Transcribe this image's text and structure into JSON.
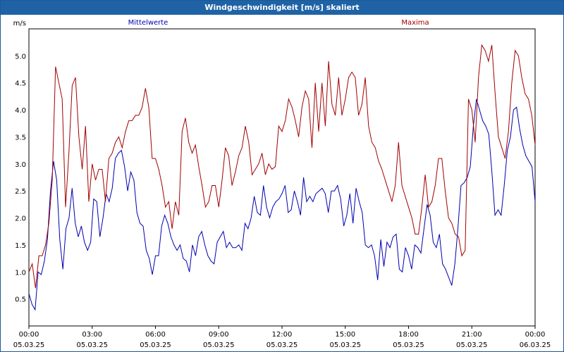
{
  "window": {
    "title": "Windgeschwindigkeit [m/s] skaliert"
  },
  "chart_data": {
    "type": "line",
    "title": "Windgeschwindigkeit [m/s] skaliert",
    "ylabel": "m/s",
    "xlabel": "",
    "xlim": [
      0,
      24
    ],
    "ylim": [
      0,
      5.5
    ],
    "grid": true,
    "y_ticks": [
      "0.5",
      "1.0",
      "1.5",
      "2.0",
      "2.5",
      "3.0",
      "3.5",
      "4.0",
      "4.5",
      "5.0"
    ],
    "x_ticks": [
      {
        "time": "00:00",
        "date": "05.03.25"
      },
      {
        "time": "03:00",
        "date": "05.03.25"
      },
      {
        "time": "06:00",
        "date": "05.03.25"
      },
      {
        "time": "09:00",
        "date": "05.03.25"
      },
      {
        "time": "12:00",
        "date": "05.03.25"
      },
      {
        "time": "15:00",
        "date": "05.03.25"
      },
      {
        "time": "18:00",
        "date": "05.03.25"
      },
      {
        "time": "21:00",
        "date": "05.03.25"
      },
      {
        "time": "00:00",
        "date": "06.03.25"
      }
    ],
    "series": [
      {
        "name": "Mittelwerte",
        "color": "#0000b0",
        "values": [
          0.6,
          0.4,
          0.3,
          1.0,
          0.95,
          1.2,
          1.6,
          2.5,
          3.05,
          2.7,
          1.6,
          1.05,
          1.8,
          2.0,
          2.55,
          1.9,
          1.65,
          1.85,
          1.55,
          1.4,
          1.55,
          2.35,
          2.3,
          1.65,
          2.0,
          2.45,
          2.3,
          2.55,
          3.1,
          3.2,
          3.25,
          2.95,
          2.5,
          2.85,
          2.7,
          2.1,
          1.9,
          1.85,
          1.4,
          1.25,
          0.95,
          1.3,
          1.3,
          1.85,
          2.05,
          1.9,
          1.65,
          1.5,
          1.4,
          1.5,
          1.25,
          1.2,
          1.0,
          1.5,
          1.3,
          1.65,
          1.75,
          1.5,
          1.3,
          1.2,
          1.15,
          1.55,
          1.65,
          1.75,
          1.45,
          1.55,
          1.45,
          1.45,
          1.5,
          1.4,
          1.9,
          1.8,
          2.0,
          2.4,
          2.1,
          2.05,
          2.6,
          2.2,
          2.0,
          2.2,
          2.3,
          2.35,
          2.45,
          2.6,
          2.1,
          2.15,
          2.5,
          2.3,
          2.05,
          2.75,
          2.3,
          2.4,
          2.3,
          2.45,
          2.5,
          2.55,
          2.45,
          2.1,
          2.5,
          2.5,
          2.6,
          2.35,
          1.85,
          2.05,
          2.45,
          1.9,
          2.55,
          2.3,
          2.1,
          1.5,
          1.45,
          1.5,
          1.3,
          0.85,
          1.6,
          1.1,
          1.55,
          1.45,
          1.65,
          1.7,
          1.05,
          1.0,
          1.45,
          1.3,
          1.05,
          1.5,
          1.45,
          1.35,
          1.8,
          2.25,
          2.05,
          1.55,
          1.45,
          1.7,
          1.15,
          1.05,
          0.9,
          0.75,
          1.15,
          1.8,
          2.6,
          2.65,
          2.75,
          2.95,
          3.7,
          4.2,
          4.0,
          3.8,
          3.7,
          3.55,
          2.85,
          2.05,
          2.15,
          2.05,
          2.6,
          3.25,
          3.5,
          4.0,
          4.05,
          3.65,
          3.35,
          3.15,
          3.05,
          2.95,
          2.3
        ]
      },
      {
        "name": "Maxima",
        "color": "#a00000",
        "values": [
          1.0,
          1.15,
          0.7,
          1.3,
          1.3,
          1.5,
          1.9,
          2.7,
          4.8,
          4.5,
          4.2,
          2.2,
          3.2,
          4.45,
          4.6,
          3.5,
          2.9,
          3.7,
          2.3,
          3.0,
          2.7,
          2.9,
          2.9,
          2.3,
          3.1,
          3.2,
          3.4,
          3.5,
          3.3,
          3.6,
          3.8,
          3.8,
          3.9,
          3.9,
          4.05,
          4.4,
          4.05,
          3.1,
          3.1,
          2.9,
          2.6,
          2.2,
          2.3,
          1.8,
          2.3,
          2.05,
          3.6,
          3.85,
          3.4,
          3.2,
          3.35,
          2.95,
          2.6,
          2.2,
          2.3,
          2.6,
          2.6,
          2.2,
          2.7,
          3.3,
          3.15,
          2.6,
          2.85,
          3.15,
          3.3,
          3.7,
          3.4,
          2.8,
          2.9,
          3.0,
          3.2,
          2.8,
          3.0,
          2.9,
          2.95,
          3.7,
          3.6,
          3.8,
          4.2,
          4.05,
          3.8,
          3.5,
          4.05,
          4.35,
          4.2,
          3.3,
          4.5,
          3.6,
          4.5,
          3.7,
          4.9,
          4.1,
          3.9,
          4.6,
          3.9,
          4.2,
          4.6,
          4.7,
          4.6,
          3.9,
          4.1,
          4.6,
          3.7,
          3.4,
          3.3,
          3.05,
          2.9,
          2.7,
          2.5,
          2.3,
          2.6,
          3.4,
          2.6,
          2.4,
          2.2,
          2.0,
          1.7,
          1.7,
          2.2,
          2.8,
          2.2,
          2.3,
          2.6,
          3.1,
          3.1,
          2.5,
          2.0,
          1.9,
          1.7,
          1.65,
          1.3,
          1.4,
          4.2,
          4.0,
          3.4,
          4.6,
          5.2,
          5.1,
          4.9,
          5.2,
          4.3,
          3.5,
          3.3,
          3.1,
          3.6,
          4.5,
          5.1,
          5.0,
          4.6,
          4.3,
          4.2,
          3.9,
          3.35
        ]
      }
    ]
  }
}
